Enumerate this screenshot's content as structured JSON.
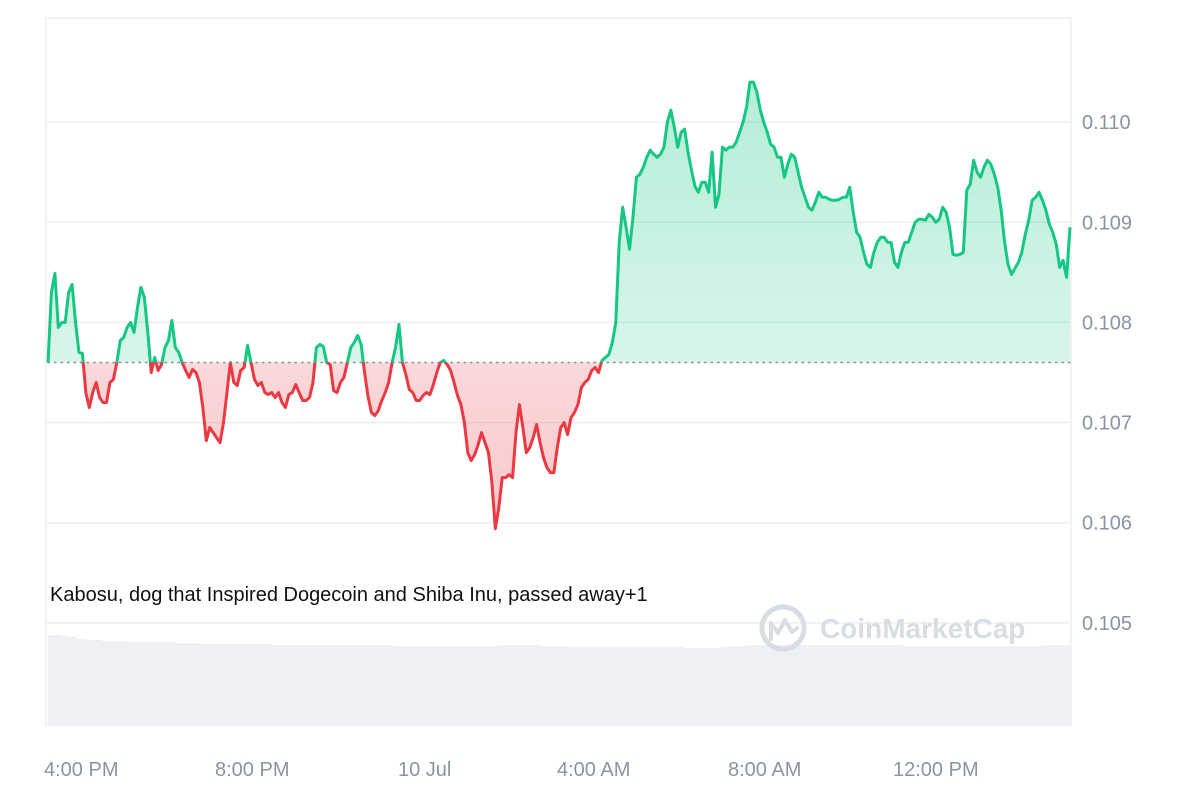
{
  "chart_data": {
    "type": "area",
    "x_tick_labels": [
      "4:00 PM",
      "8:00 PM",
      "10 Jul",
      "4:00 AM",
      "8:00 AM",
      "12:00 PM"
    ],
    "y_tick_labels": [
      "0.110",
      "0.109",
      "0.108",
      "0.107",
      "0.106",
      "0.105"
    ],
    "y_ticks": [
      0.11,
      0.109,
      0.108,
      0.107,
      0.106,
      0.105
    ],
    "ylim": [
      0.10398,
      0.11102
    ],
    "baseline": 0.1076,
    "grid": true,
    "annotation": "Kabosu, dog that Inspired Dogecoin and Shiba Inu, passed away+1",
    "watermark": "CoinMarketCap",
    "colors": {
      "up": "#16c784",
      "down": "#ea3943",
      "baseline_dots": "#8a8f99",
      "grid": "#eceef1",
      "volume": "#eef0f3"
    },
    "series": [
      {
        "values": [
          0.1076,
          0.1083,
          0.10849,
          0.10795,
          0.108,
          0.108,
          0.1083,
          0.10838,
          0.108,
          0.1077,
          0.10769,
          0.1073,
          0.10715,
          0.1073,
          0.1074,
          0.10725,
          0.1072,
          0.1072,
          0.1074,
          0.10743,
          0.1076,
          0.10782,
          0.10785,
          0.10795,
          0.108,
          0.1079,
          0.10815,
          0.10835,
          0.10825,
          0.1079,
          0.1075,
          0.10765,
          0.10752,
          0.10758,
          0.10775,
          0.10782,
          0.10802,
          0.10775,
          0.1077,
          0.1076,
          0.10752,
          0.10745,
          0.10753,
          0.1075,
          0.1074,
          0.10715,
          0.10682,
          0.10695,
          0.1069,
          0.10685,
          0.1068,
          0.107,
          0.1073,
          0.1076,
          0.1074,
          0.10737,
          0.10752,
          0.10755,
          0.10777,
          0.1076,
          0.10743,
          0.10737,
          0.1074,
          0.1073,
          0.10728,
          0.1073,
          0.10725,
          0.1073,
          0.1072,
          0.10715,
          0.10728,
          0.1073,
          0.10738,
          0.1073,
          0.10722,
          0.10722,
          0.10725,
          0.1074,
          0.10775,
          0.10778,
          0.10776,
          0.1076,
          0.10758,
          0.10732,
          0.1073,
          0.1074,
          0.10745,
          0.1076,
          0.10775,
          0.1078,
          0.10787,
          0.10778,
          0.1075,
          0.10726,
          0.1071,
          0.10707,
          0.10712,
          0.10722,
          0.1073,
          0.1074,
          0.1076,
          0.10775,
          0.10798,
          0.1076,
          0.10748,
          0.10733,
          0.1073,
          0.10722,
          0.10722,
          0.10727,
          0.1073,
          0.10728,
          0.10738,
          0.1075,
          0.1076,
          0.10762,
          0.10758,
          0.10752,
          0.1074,
          0.10727,
          0.10718,
          0.107,
          0.1067,
          0.10662,
          0.10668,
          0.10678,
          0.1069,
          0.1068,
          0.1067,
          0.1064,
          0.10594,
          0.10615,
          0.10645,
          0.10645,
          0.10648,
          0.10645,
          0.1069,
          0.10718,
          0.10695,
          0.1067,
          0.10675,
          0.10685,
          0.10698,
          0.1068,
          0.10665,
          0.10655,
          0.1065,
          0.1065,
          0.10675,
          0.10695,
          0.107,
          0.10688,
          0.10705,
          0.1071,
          0.10718,
          0.10735,
          0.1074,
          0.10743,
          0.10752,
          0.10755,
          0.1075,
          0.10762,
          0.10765,
          0.10768,
          0.1078,
          0.108,
          0.1088,
          0.10915,
          0.10895,
          0.10873,
          0.10905,
          0.10945,
          0.10948,
          0.10955,
          0.10965,
          0.10972,
          0.10968,
          0.10965,
          0.10968,
          0.10975,
          0.11,
          0.11012,
          0.10995,
          0.10975,
          0.1099,
          0.10993,
          0.1097,
          0.10952,
          0.10936,
          0.1093,
          0.1094,
          0.1094,
          0.1093,
          0.1097,
          0.10915,
          0.10928,
          0.10975,
          0.10972,
          0.10975,
          0.10975,
          0.1098,
          0.1099,
          0.11,
          0.11015,
          0.1104,
          0.1104,
          0.1103,
          0.11012,
          0.11,
          0.1099,
          0.10978,
          0.10975,
          0.10965,
          0.10965,
          0.10945,
          0.10958,
          0.10968,
          0.10965,
          0.1095,
          0.10935,
          0.10925,
          0.10915,
          0.10912,
          0.1092,
          0.1093,
          0.10925,
          0.10925,
          0.10923,
          0.10922,
          0.10922,
          0.10923,
          0.10925,
          0.10925,
          0.10935,
          0.1091,
          0.1089,
          0.10885,
          0.1087,
          0.10858,
          0.10855,
          0.1087,
          0.1088,
          0.10885,
          0.10885,
          0.1088,
          0.1088,
          0.1086,
          0.10855,
          0.1087,
          0.1088,
          0.1088,
          0.1089,
          0.109,
          0.10903,
          0.10903,
          0.10902,
          0.10908,
          0.10905,
          0.109,
          0.10903,
          0.10915,
          0.1091,
          0.10895,
          0.10868,
          0.10867,
          0.10868,
          0.1087,
          0.10932,
          0.10938,
          0.10962,
          0.1095,
          0.10945,
          0.10955,
          0.10962,
          0.10958,
          0.10948,
          0.10935,
          0.10912,
          0.1088,
          0.10858,
          0.10848,
          0.10854,
          0.1086,
          0.1087,
          0.10888,
          0.10902,
          0.10922,
          0.10925,
          0.1093,
          0.10922,
          0.10912,
          0.10898,
          0.1089,
          0.10878,
          0.10855,
          0.10862,
          0.10845,
          0.10895
        ]
      }
    ],
    "volume": [
      0.9,
      0.9,
      0.9,
      0.9,
      0.89,
      0.89,
      0.88,
      0.88,
      0.88,
      0.86,
      0.86,
      0.86,
      0.85,
      0.85,
      0.85,
      0.85,
      0.85,
      0.84,
      0.84,
      0.84,
      0.84,
      0.84,
      0.84,
      0.84,
      0.84,
      0.83,
      0.83,
      0.83,
      0.83,
      0.83,
      0.83,
      0.83,
      0.83,
      0.83,
      0.83,
      0.83,
      0.83,
      0.83,
      0.83,
      0.83,
      0.82,
      0.82,
      0.82,
      0.82,
      0.82,
      0.82,
      0.82,
      0.82,
      0.81,
      0.81,
      0.81,
      0.81,
      0.81,
      0.81,
      0.81,
      0.81,
      0.81,
      0.81,
      0.81,
      0.81,
      0.81,
      0.81,
      0.81,
      0.81,
      0.81,
      0.81,
      0.81,
      0.81,
      0.81,
      0.81,
      0.81,
      0.8,
      0.8,
      0.8,
      0.8,
      0.8,
      0.8,
      0.8,
      0.8,
      0.8,
      0.8,
      0.8,
      0.8,
      0.8,
      0.8,
      0.8,
      0.8,
      0.8,
      0.8,
      0.8,
      0.8,
      0.8,
      0.8,
      0.8,
      0.8,
      0.8,
      0.8,
      0.8,
      0.8,
      0.8,
      0.8,
      0.8,
      0.8,
      0.8,
      0.8,
      0.8,
      0.8,
      0.8,
      0.8,
      0.8,
      0.79,
      0.79,
      0.79,
      0.79,
      0.79,
      0.79,
      0.79,
      0.79,
      0.79,
      0.79,
      0.79,
      0.79,
      0.79,
      0.79,
      0.79,
      0.79,
      0.79,
      0.79,
      0.79,
      0.79,
      0.79,
      0.79,
      0.79,
      0.79,
      0.79,
      0.79,
      0.79,
      0.79,
      0.79,
      0.79,
      0.79,
      0.79,
      0.79,
      0.8,
      0.8,
      0.8,
      0.8,
      0.8,
      0.8,
      0.8,
      0.8,
      0.8,
      0.8,
      0.8,
      0.8,
      0.8,
      0.79,
      0.79,
      0.79,
      0.79,
      0.79,
      0.79,
      0.79,
      0.79,
      0.79,
      0.78,
      0.78,
      0.78,
      0.78,
      0.78,
      0.78,
      0.78,
      0.78,
      0.78,
      0.78,
      0.78,
      0.78,
      0.78,
      0.78,
      0.78,
      0.78,
      0.78,
      0.78,
      0.78,
      0.78,
      0.78,
      0.78,
      0.78,
      0.78,
      0.78,
      0.78,
      0.78,
      0.78,
      0.78,
      0.78,
      0.78,
      0.78,
      0.78,
      0.78,
      0.78,
      0.78,
      0.78,
      0.77,
      0.77,
      0.77,
      0.77,
      0.77,
      0.77,
      0.77,
      0.77,
      0.77,
      0.77,
      0.77,
      0.77,
      0.78,
      0.78,
      0.79,
      0.79,
      0.79,
      0.79,
      0.79,
      0.79,
      0.8,
      0.8,
      0.8,
      0.8,
      0.8,
      0.8,
      0.8,
      0.8,
      0.8,
      0.8,
      0.8,
      0.8,
      0.8,
      0.8,
      0.8,
      0.8,
      0.8,
      0.8,
      0.8,
      0.8,
      0.8,
      0.8,
      0.8,
      0.8,
      0.8,
      0.8,
      0.8,
      0.8,
      0.8,
      0.8,
      0.8,
      0.8,
      0.8,
      0.8,
      0.8,
      0.8,
      0.8,
      0.8,
      0.8,
      0.8,
      0.8,
      0.8,
      0.8,
      0.8,
      0.8,
      0.8,
      0.8,
      0.8,
      0.8,
      0.8,
      0.79,
      0.79,
      0.79,
      0.79,
      0.79,
      0.79,
      0.79,
      0.79,
      0.79,
      0.79,
      0.79,
      0.79,
      0.79,
      0.79,
      0.79,
      0.79,
      0.79,
      0.79,
      0.79,
      0.79,
      0.79,
      0.79,
      0.79,
      0.79,
      0.79,
      0.79,
      0.79,
      0.79,
      0.79,
      0.79,
      0.79,
      0.79,
      0.79,
      0.79,
      0.79,
      0.79,
      0.79,
      0.79,
      0.79,
      0.79,
      0.79,
      0.79,
      0.79,
      0.79,
      0.8,
      0.8,
      0.8,
      0.8,
      0.8,
      0.8,
      0.8,
      0.8,
      0.8
    ]
  }
}
